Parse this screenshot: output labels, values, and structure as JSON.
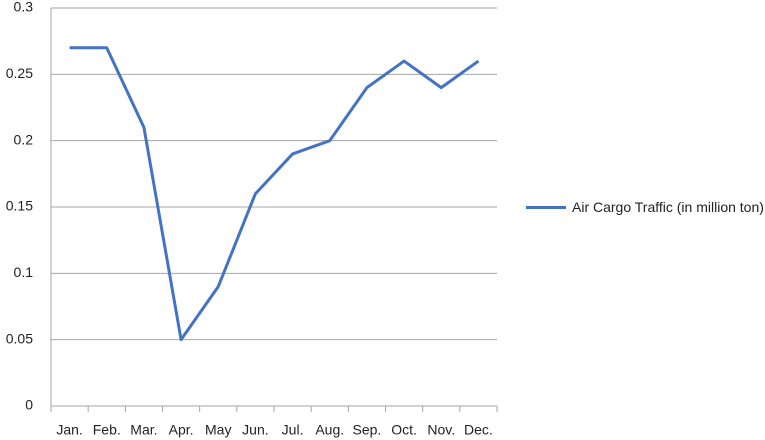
{
  "chart_data": {
    "type": "line",
    "categories": [
      "Jan.",
      "Feb.",
      "Mar.",
      "Apr.",
      "May",
      "Jun.",
      "Jul.",
      "Aug.",
      "Sep.",
      "Oct.",
      "Nov.",
      "Dec."
    ],
    "series": [
      {
        "name": "Air Cargo Traffic (in million ton)",
        "color": "#4472c4",
        "values": [
          0.27,
          0.27,
          0.21,
          0.05,
          0.09,
          0.16,
          0.19,
          0.2,
          0.24,
          0.26,
          0.24,
          0.26
        ]
      }
    ],
    "ylim": [
      0,
      0.3
    ],
    "yticks": [
      0,
      0.05,
      0.1,
      0.15,
      0.2,
      0.25,
      0.3
    ],
    "grid": true,
    "legend": "right"
  }
}
